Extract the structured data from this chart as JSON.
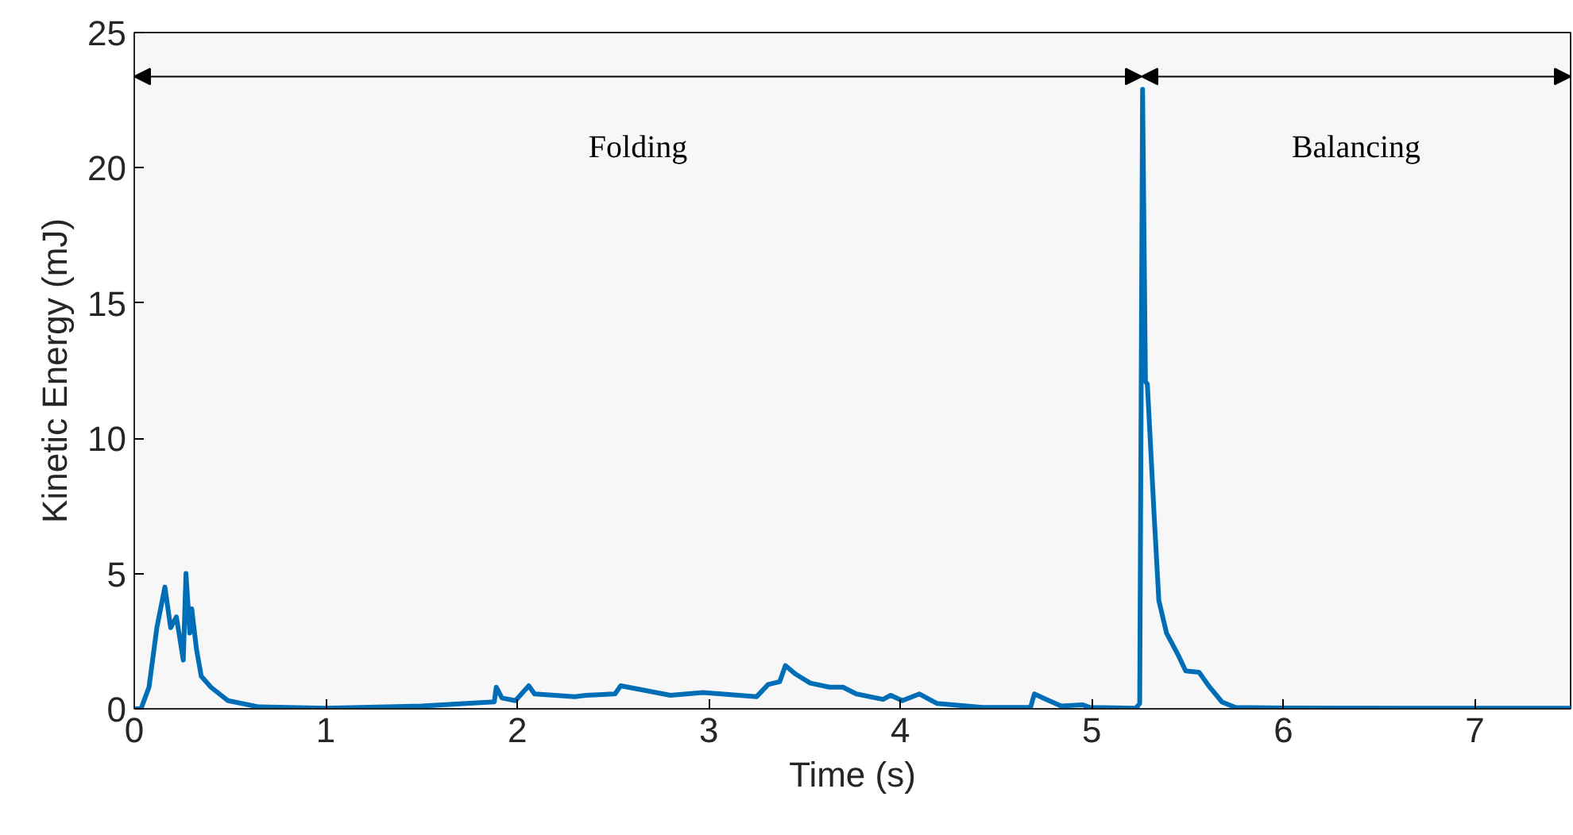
{
  "chart_data": {
    "type": "line",
    "xlabel": "Time (s)",
    "ylabel": "Kinetic Energy (mJ)",
    "xlim": [
      0,
      7.5
    ],
    "ylim": [
      0,
      25
    ],
    "xticks": [
      0,
      1,
      2,
      3,
      4,
      5,
      6,
      7
    ],
    "yticks": [
      0,
      5,
      10,
      15,
      20,
      25
    ],
    "grid": false,
    "series": [
      {
        "color": "#0072bd",
        "x": [
          0,
          0.035,
          0.077,
          0.118,
          0.16,
          0.19,
          0.22,
          0.256,
          0.27,
          0.29,
          0.3,
          0.325,
          0.35,
          0.4,
          0.49,
          0.65,
          1.0,
          1.5,
          1.88,
          1.89,
          1.92,
          1.99,
          2.06,
          2.09,
          2.3,
          2.36,
          2.51,
          2.54,
          2.8,
          2.97,
          3.25,
          3.31,
          3.37,
          3.4,
          3.45,
          3.53,
          3.63,
          3.7,
          3.77,
          3.91,
          3.95,
          4.01,
          4.1,
          4.19,
          4.43,
          4.68,
          4.7,
          4.76,
          4.84,
          4.95,
          4.99,
          5.23,
          5.25,
          5.265,
          5.28,
          5.29,
          5.325,
          5.35,
          5.39,
          5.45,
          5.49,
          5.56,
          5.61,
          5.68,
          5.75,
          6.0,
          7.5
        ],
        "values": [
          0,
          0,
          0.8,
          3.0,
          4.5,
          3.0,
          3.4,
          1.8,
          5.0,
          2.8,
          3.7,
          2.2,
          1.2,
          0.8,
          0.3,
          0.07,
          0.02,
          0.1,
          0.26,
          0.8,
          0.4,
          0.3,
          0.85,
          0.55,
          0.45,
          0.5,
          0.55,
          0.85,
          0.5,
          0.6,
          0.45,
          0.9,
          1.0,
          1.6,
          1.3,
          0.95,
          0.8,
          0.8,
          0.55,
          0.35,
          0.5,
          0.3,
          0.55,
          0.2,
          0.05,
          0.05,
          0.55,
          0.35,
          0.1,
          0.15,
          0.05,
          0.02,
          0.2,
          22.9,
          12.1,
          12.0,
          7.2,
          4.0,
          2.8,
          2.0,
          1.4,
          1.35,
          0.85,
          0.25,
          0.05,
          0.03,
          0.02
        ]
      }
    ],
    "bands": [
      {
        "axis": "x",
        "from": 0,
        "to": 5.26,
        "label": "Folding",
        "color": "#000000"
      },
      {
        "axis": "x",
        "from": 5.26,
        "to": 7.5,
        "label": "Balancing",
        "color": "#000000"
      }
    ]
  }
}
